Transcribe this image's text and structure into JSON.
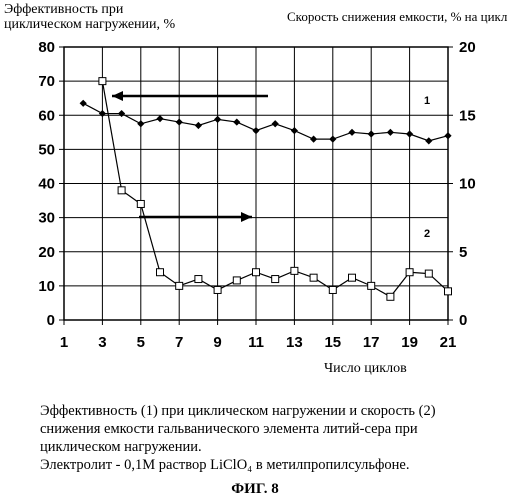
{
  "chart_data": {
    "type": "line",
    "y_left_label_lines": [
      "Эффективность  при",
      "циклическом нагружении, %"
    ],
    "y_right_label": "Скорость снижения емкости, % на цикл",
    "xlabel": "Число циклов",
    "xlim": [
      1,
      21
    ],
    "x_ticks": [
      1,
      3,
      5,
      7,
      9,
      11,
      13,
      15,
      17,
      19,
      21
    ],
    "y_left_lim": [
      0,
      80
    ],
    "y_left_ticks": [
      0,
      10,
      20,
      30,
      40,
      50,
      60,
      70,
      80
    ],
    "y_right_lim": [
      0,
      20
    ],
    "y_right_ticks": [
      0,
      5,
      10,
      15,
      20
    ],
    "grid": true,
    "series": [
      {
        "name": "1",
        "axis": "left",
        "marker": "diamond",
        "x": [
          2,
          3,
          4,
          5,
          6,
          7,
          8,
          9,
          10,
          11,
          12,
          13,
          14,
          15,
          16,
          17,
          18,
          19,
          20,
          21
        ],
        "values": [
          63.5,
          60.5,
          60.5,
          57.5,
          59,
          58,
          57,
          58.8,
          58,
          55.5,
          57.5,
          55.5,
          53,
          53,
          55,
          54.5,
          55,
          54.5,
          52.5,
          54
        ]
      },
      {
        "name": "2",
        "axis": "right",
        "marker": "square",
        "x": [
          3,
          4,
          5,
          6,
          7,
          8,
          9,
          10,
          11,
          12,
          13,
          14,
          15,
          16,
          17,
          18,
          19,
          20,
          21
        ],
        "values": [
          17.5,
          9.5,
          8.5,
          3.5,
          2.5,
          3,
          2.2,
          2.9,
          3.5,
          3,
          3.6,
          3.1,
          2.2,
          3.1,
          2.5,
          1.7,
          3.5,
          3.4,
          2.1
        ]
      }
    ],
    "annotations": [
      "1",
      "2"
    ]
  },
  "caption_lines": [
    "Эффективность (1) при циклическом нагружении  и скорость (2)",
    "снижения емкости гальванического элемента литий-сера при",
    "циклическом нагружении.",
    "Электролит - 0,1М раствор LiClO₄ в метилпропилсульфоне."
  ],
  "figure_label": "ФИГ. 8",
  "colors": {
    "axis": "#000000",
    "grid": "#000000",
    "series": "#000000",
    "marker_fill": "#ffffff"
  }
}
